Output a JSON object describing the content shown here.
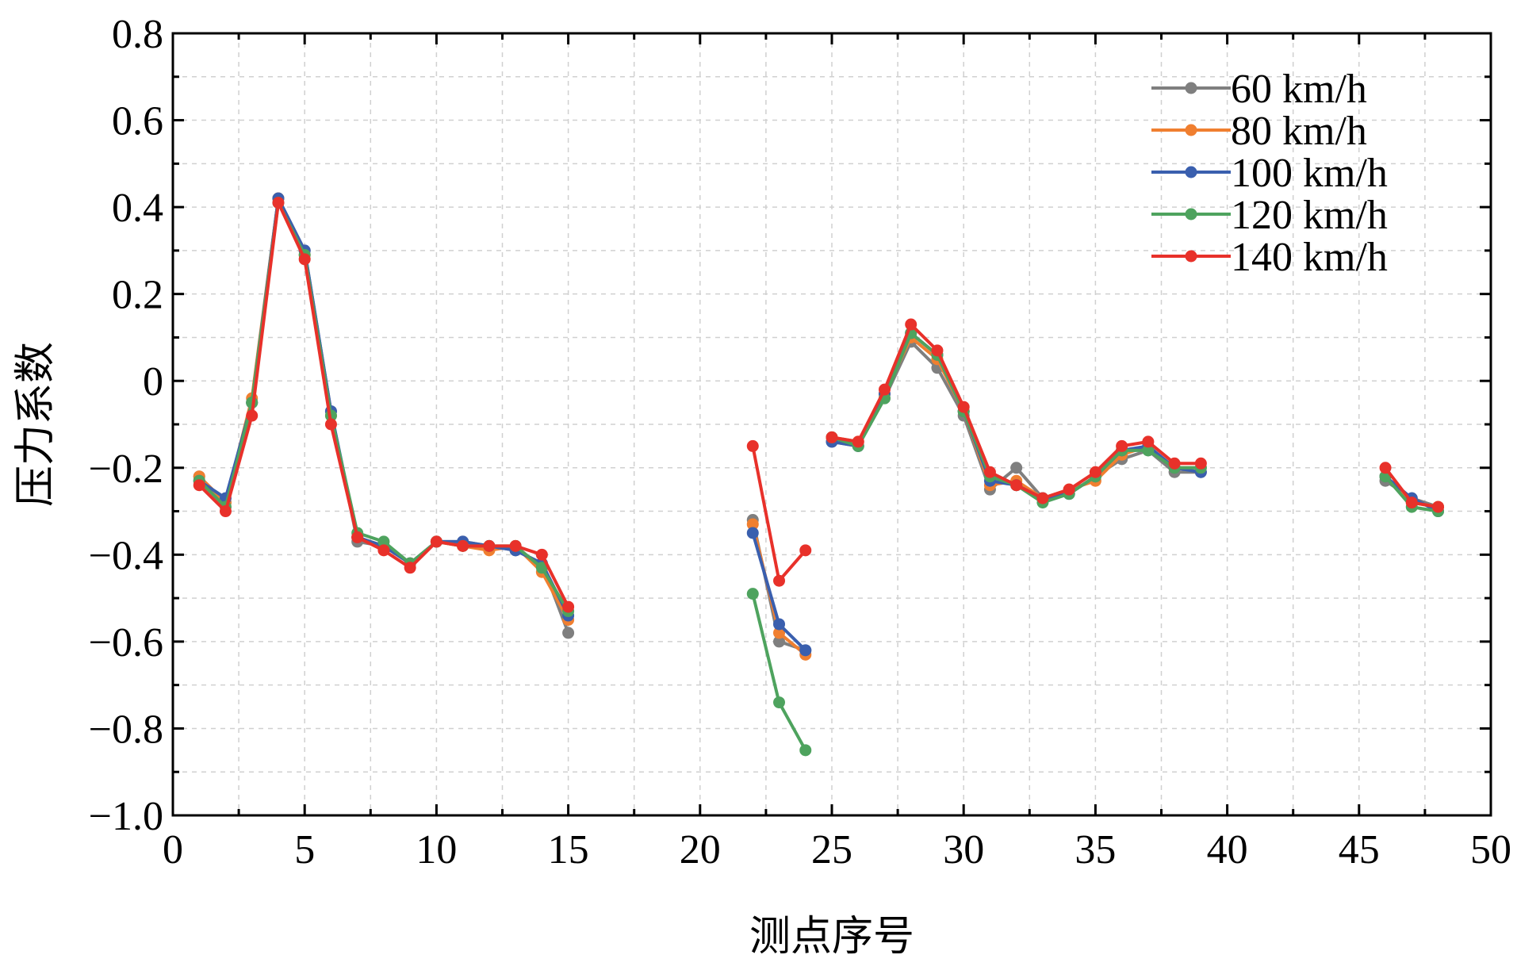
{
  "chart_data": {
    "type": "line",
    "title": "",
    "xlabel": "测点序号",
    "ylabel": "压力系数",
    "xlim": [
      0,
      50
    ],
    "ylim": [
      -1.0,
      0.8
    ],
    "xticks": [
      0,
      5,
      10,
      15,
      20,
      25,
      30,
      35,
      40,
      45,
      50
    ],
    "xtick_labels": [
      "0",
      "5",
      "10",
      "15",
      "20",
      "25",
      "30",
      "35",
      "40",
      "45",
      "50"
    ],
    "yticks": [
      -1.0,
      -0.8,
      -0.6,
      -0.4,
      -0.2,
      0,
      0.2,
      0.4,
      0.6,
      0.8
    ],
    "ytick_labels": [
      "−1.0",
      "−0.8",
      "−0.6",
      "−0.4",
      "−0.2",
      "0",
      "0.2",
      "0.4",
      "0.6",
      "0.8"
    ],
    "grid": true,
    "legend_position": "top-right",
    "series": [
      {
        "name": "60 km/h",
        "color": "#7f7f7f",
        "segments": [
          [
            [
              1,
              -0.22
            ],
            [
              2,
              -0.28
            ],
            [
              3,
              -0.05
            ],
            [
              4,
              0.42
            ],
            [
              5,
              0.3
            ],
            [
              6,
              -0.07
            ],
            [
              7,
              -0.37
            ],
            [
              8,
              -0.38
            ],
            [
              9,
              -0.42
            ],
            [
              10,
              -0.37
            ],
            [
              11,
              -0.37
            ],
            [
              12,
              -0.38
            ],
            [
              13,
              -0.39
            ],
            [
              14,
              -0.42
            ],
            [
              15,
              -0.58
            ]
          ],
          [
            [
              22,
              -0.32
            ],
            [
              23,
              -0.6
            ],
            [
              24,
              -0.62
            ]
          ],
          [
            [
              25,
              -0.14
            ],
            [
              26,
              -0.15
            ],
            [
              27,
              -0.04
            ],
            [
              28,
              0.09
            ],
            [
              29,
              0.03
            ],
            [
              30,
              -0.08
            ],
            [
              31,
              -0.25
            ],
            [
              32,
              -0.2
            ],
            [
              33,
              -0.27
            ],
            [
              34,
              -0.26
            ],
            [
              35,
              -0.22
            ],
            [
              36,
              -0.18
            ],
            [
              37,
              -0.16
            ],
            [
              38,
              -0.21
            ],
            [
              39,
              -0.21
            ]
          ],
          [
            [
              46,
              -0.23
            ],
            [
              47,
              -0.27
            ],
            [
              48,
              -0.29
            ]
          ]
        ]
      },
      {
        "name": "80 km/h",
        "color": "#f07f30",
        "segments": [
          [
            [
              1,
              -0.22
            ],
            [
              2,
              -0.28
            ],
            [
              3,
              -0.04
            ],
            [
              4,
              0.42
            ],
            [
              5,
              0.29
            ],
            [
              6,
              -0.08
            ],
            [
              7,
              -0.36
            ],
            [
              8,
              -0.38
            ],
            [
              9,
              -0.42
            ],
            [
              10,
              -0.37
            ],
            [
              11,
              -0.38
            ],
            [
              12,
              -0.39
            ],
            [
              13,
              -0.38
            ],
            [
              14,
              -0.44
            ],
            [
              15,
              -0.55
            ]
          ],
          [
            [
              22,
              -0.33
            ],
            [
              23,
              -0.58
            ],
            [
              24,
              -0.63
            ]
          ],
          [
            [
              25,
              -0.13
            ],
            [
              26,
              -0.14
            ],
            [
              27,
              -0.03
            ],
            [
              28,
              0.1
            ],
            [
              29,
              0.05
            ],
            [
              30,
              -0.07
            ],
            [
              31,
              -0.24
            ],
            [
              32,
              -0.23
            ],
            [
              33,
              -0.27
            ],
            [
              34,
              -0.25
            ],
            [
              35,
              -0.23
            ],
            [
              36,
              -0.17
            ],
            [
              37,
              -0.15
            ],
            [
              38,
              -0.2
            ],
            [
              39,
              -0.2
            ]
          ],
          [
            [
              46,
              -0.22
            ],
            [
              47,
              -0.28
            ],
            [
              48,
              -0.29
            ]
          ]
        ]
      },
      {
        "name": "100 km/h",
        "color": "#3a5fae",
        "segments": [
          [
            [
              1,
              -0.23
            ],
            [
              2,
              -0.27
            ],
            [
              3,
              -0.05
            ],
            [
              4,
              0.42
            ],
            [
              5,
              0.3
            ],
            [
              6,
              -0.07
            ],
            [
              7,
              -0.36
            ],
            [
              8,
              -0.38
            ],
            [
              9,
              -0.42
            ],
            [
              10,
              -0.37
            ],
            [
              11,
              -0.37
            ],
            [
              12,
              -0.38
            ],
            [
              13,
              -0.39
            ],
            [
              14,
              -0.42
            ],
            [
              15,
              -0.54
            ]
          ],
          [
            [
              22,
              -0.35
            ],
            [
              23,
              -0.56
            ],
            [
              24,
              -0.62
            ]
          ],
          [
            [
              25,
              -0.14
            ],
            [
              26,
              -0.15
            ],
            [
              27,
              -0.03
            ],
            [
              28,
              0.11
            ],
            [
              29,
              0.06
            ],
            [
              30,
              -0.07
            ],
            [
              31,
              -0.23
            ],
            [
              32,
              -0.24
            ],
            [
              33,
              -0.27
            ],
            [
              34,
              -0.26
            ],
            [
              35,
              -0.22
            ],
            [
              36,
              -0.16
            ],
            [
              37,
              -0.15
            ],
            [
              38,
              -0.2
            ],
            [
              39,
              -0.21
            ]
          ],
          [
            [
              46,
              -0.22
            ],
            [
              47,
              -0.27
            ],
            [
              48,
              -0.3
            ]
          ]
        ]
      },
      {
        "name": "120 km/h",
        "color": "#4ea35e",
        "segments": [
          [
            [
              1,
              -0.23
            ],
            [
              2,
              -0.29
            ],
            [
              3,
              -0.05
            ],
            [
              4,
              0.41
            ],
            [
              5,
              0.29
            ],
            [
              6,
              -0.08
            ],
            [
              7,
              -0.35
            ],
            [
              8,
              -0.37
            ],
            [
              9,
              -0.42
            ],
            [
              10,
              -0.37
            ],
            [
              11,
              -0.38
            ],
            [
              12,
              -0.38
            ],
            [
              13,
              -0.38
            ],
            [
              14,
              -0.43
            ],
            [
              15,
              -0.53
            ]
          ],
          [
            [
              22,
              -0.49
            ],
            [
              23,
              -0.74
            ],
            [
              24,
              -0.85
            ]
          ],
          [
            [
              25,
              -0.13
            ],
            [
              26,
              -0.15
            ],
            [
              27,
              -0.04
            ],
            [
              28,
              0.11
            ],
            [
              29,
              0.06
            ],
            [
              30,
              -0.07
            ],
            [
              31,
              -0.22
            ],
            [
              32,
              -0.24
            ],
            [
              33,
              -0.28
            ],
            [
              34,
              -0.26
            ],
            [
              35,
              -0.22
            ],
            [
              36,
              -0.16
            ],
            [
              37,
              -0.16
            ],
            [
              38,
              -0.2
            ],
            [
              39,
              -0.2
            ]
          ],
          [
            [
              46,
              -0.22
            ],
            [
              47,
              -0.29
            ],
            [
              48,
              -0.3
            ]
          ]
        ]
      },
      {
        "name": "140 km/h",
        "color": "#e8312a",
        "segments": [
          [
            [
              1,
              -0.24
            ],
            [
              2,
              -0.3
            ],
            [
              3,
              -0.08
            ],
            [
              4,
              0.41
            ],
            [
              5,
              0.28
            ],
            [
              6,
              -0.1
            ],
            [
              7,
              -0.36
            ],
            [
              8,
              -0.39
            ],
            [
              9,
              -0.43
            ],
            [
              10,
              -0.37
            ],
            [
              11,
              -0.38
            ],
            [
              12,
              -0.38
            ],
            [
              13,
              -0.38
            ],
            [
              14,
              -0.4
            ],
            [
              15,
              -0.52
            ]
          ],
          [
            [
              22,
              -0.15
            ],
            [
              23,
              -0.46
            ],
            [
              24,
              -0.39
            ]
          ],
          [
            [
              25,
              -0.13
            ],
            [
              26,
              -0.14
            ],
            [
              27,
              -0.02
            ],
            [
              28,
              0.13
            ],
            [
              29,
              0.07
            ],
            [
              30,
              -0.06
            ],
            [
              31,
              -0.21
            ],
            [
              32,
              -0.24
            ],
            [
              33,
              -0.27
            ],
            [
              34,
              -0.25
            ],
            [
              35,
              -0.21
            ],
            [
              36,
              -0.15
            ],
            [
              37,
              -0.14
            ],
            [
              38,
              -0.19
            ],
            [
              39,
              -0.19
            ]
          ],
          [
            [
              46,
              -0.2
            ],
            [
              47,
              -0.28
            ],
            [
              48,
              -0.29
            ]
          ]
        ]
      }
    ]
  }
}
